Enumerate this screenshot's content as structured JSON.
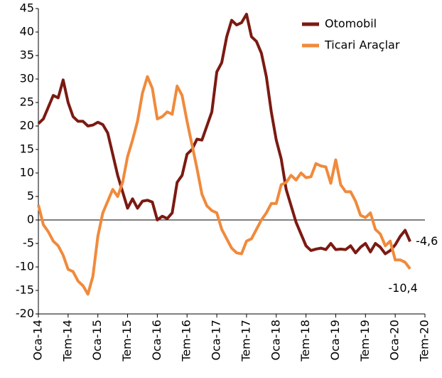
{
  "chart_data": {
    "type": "line",
    "categories": [
      "Oca-14",
      null,
      null,
      null,
      null,
      null,
      "Tem-14",
      null,
      null,
      null,
      null,
      null,
      "Oca-15",
      null,
      null,
      null,
      null,
      null,
      "Tem-15",
      null,
      null,
      null,
      null,
      null,
      "Oca-16",
      null,
      null,
      null,
      null,
      null,
      "Tem-16",
      null,
      null,
      null,
      null,
      null,
      "Oca-17",
      null,
      null,
      null,
      null,
      null,
      "Tem-17",
      null,
      null,
      null,
      null,
      null,
      "Oca-18",
      null,
      null,
      null,
      null,
      null,
      "Tem-18",
      null,
      null,
      null,
      null,
      null,
      "Oca-19",
      null,
      null,
      null,
      null,
      null,
      "Tem-19",
      null,
      null,
      null,
      null,
      null,
      "Oca-20",
      null,
      null,
      null,
      null,
      null,
      "Tem-20"
    ],
    "series": [
      {
        "name": "Otomobil",
        "color": "#7b1a12",
        "values": [
          20.5,
          21.5,
          24,
          26.5,
          26,
          29.8,
          25,
          22,
          21,
          21,
          20,
          20.2,
          20.8,
          20.3,
          18.5,
          14,
          9.5,
          6,
          2.5,
          4.5,
          2.5,
          4,
          4.2,
          3.8,
          0,
          0.8,
          0.3,
          1.5,
          8,
          9.5,
          14,
          15,
          17.2,
          17,
          20,
          23,
          31.5,
          33.5,
          39,
          42.5,
          41.5,
          42,
          43.8,
          39,
          38,
          35.5,
          30.5,
          23,
          17,
          13,
          6.5,
          3,
          -0.5,
          -3,
          -5.5,
          -6.5,
          -6.2,
          -6,
          -6.3,
          -5,
          -6.3,
          -6.2,
          -6.3,
          -5.5,
          -7,
          -5.8,
          -5,
          -6.8,
          -5,
          -5.8,
          -7.2,
          -6.5,
          -5.3,
          -3.5,
          -2.2,
          -4.6,
          null,
          null,
          null
        ],
        "value_labels": [
          null,
          null,
          null,
          null,
          null,
          null,
          null,
          null,
          null,
          null,
          null,
          null,
          null,
          null,
          null,
          null,
          null,
          null,
          null,
          null,
          null,
          null,
          null,
          null,
          null,
          null,
          null,
          null,
          null,
          null,
          null,
          null,
          null,
          null,
          null,
          null,
          null,
          null,
          null,
          null,
          null,
          null,
          null,
          null,
          null,
          null,
          null,
          null,
          null,
          null,
          null,
          null,
          null,
          null,
          null,
          null,
          null,
          null,
          null,
          null,
          null,
          null,
          null,
          null,
          null,
          null,
          null,
          null,
          null,
          null,
          null,
          null,
          null,
          null,
          null,
          "-4,6",
          null,
          null,
          null
        ]
      },
      {
        "name": "Ticari Araçlar",
        "color": "#f08a3c",
        "values": [
          3.2,
          -1,
          -2.5,
          -4.5,
          -5.5,
          -7.5,
          -10.5,
          -11,
          -13,
          -14,
          -15.8,
          -12,
          -3.5,
          1.5,
          4,
          6.5,
          5,
          8,
          13.5,
          17,
          21,
          27,
          30.5,
          28,
          21.5,
          22,
          23,
          22.5,
          28.5,
          26.5,
          21,
          16,
          11,
          5.5,
          3,
          2,
          1.5,
          -2,
          -4,
          -6,
          -7,
          -7.2,
          -4.5,
          -4,
          -2,
          0,
          1.5,
          3.5,
          3.5,
          7.5,
          8,
          9.5,
          8.5,
          10,
          9,
          9.2,
          12,
          11.5,
          11.3,
          7.8,
          12.8,
          7.5,
          6,
          6,
          4,
          1,
          0.5,
          1.5,
          -2,
          -3,
          -5.5,
          -4.5,
          -8.5,
          -8.5,
          -9,
          -10.4,
          null,
          null,
          null
        ],
        "value_labels": [
          null,
          null,
          null,
          null,
          null,
          null,
          null,
          null,
          null,
          null,
          null,
          null,
          null,
          null,
          null,
          null,
          null,
          null,
          null,
          null,
          null,
          null,
          null,
          null,
          null,
          null,
          null,
          null,
          null,
          null,
          null,
          null,
          null,
          null,
          null,
          null,
          null,
          null,
          null,
          null,
          null,
          null,
          null,
          null,
          null,
          null,
          null,
          null,
          null,
          null,
          null,
          null,
          null,
          null,
          null,
          null,
          null,
          null,
          null,
          null,
          null,
          null,
          null,
          null,
          null,
          null,
          null,
          null,
          null,
          null,
          null,
          null,
          null,
          null,
          null,
          "-10,4",
          null,
          null,
          null
        ]
      }
    ],
    "ylim": [
      -20,
      45
    ],
    "yticks": [
      -20,
      -15,
      -10,
      -5,
      0,
      5,
      10,
      15,
      20,
      25,
      30,
      35,
      40,
      45
    ],
    "legend": "top-right"
  }
}
